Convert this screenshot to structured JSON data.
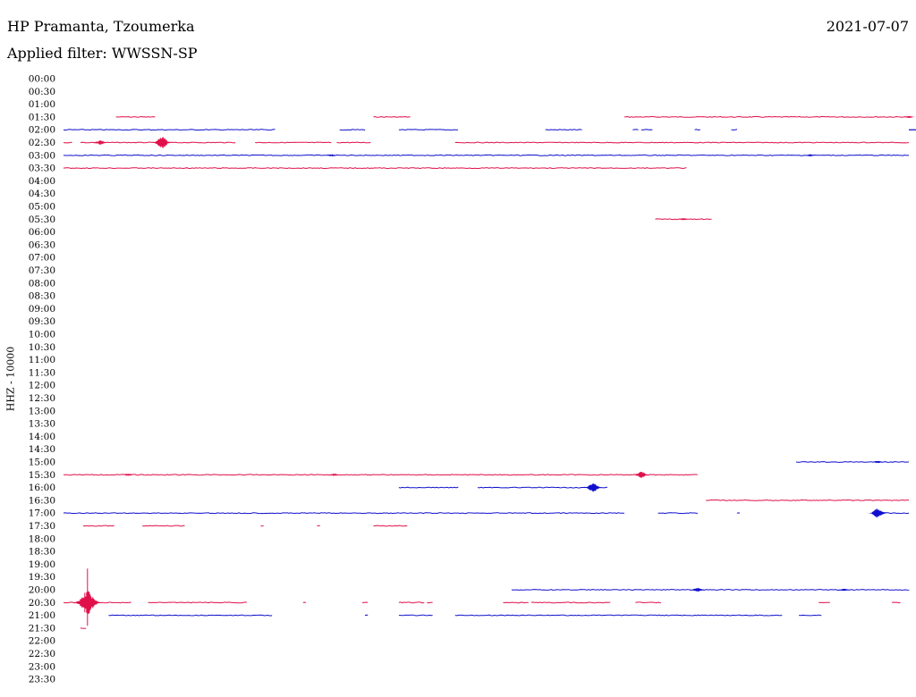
{
  "header": {
    "station": "HP Pramanta, Tzoumerka",
    "date": "2021-07-07",
    "filter": "Applied filter: WWSSN-SP"
  },
  "chart_data": {
    "type": "line",
    "title": "HP Pramanta, Tzoumerka",
    "ylabel": "HHZ - 10000",
    "x_range_minutes": [
      0,
      30
    ],
    "row_labels": [
      "00:00",
      "00:30",
      "01:00",
      "01:30",
      "02:00",
      "02:30",
      "03:00",
      "03:30",
      "04:00",
      "04:30",
      "05:00",
      "05:30",
      "06:00",
      "06:30",
      "07:00",
      "07:30",
      "08:00",
      "08:30",
      "09:00",
      "09:30",
      "10:00",
      "10:30",
      "11:00",
      "11:30",
      "12:00",
      "12:30",
      "13:00",
      "13:30",
      "14:00",
      "14:30",
      "15:00",
      "15:30",
      "16:00",
      "16:30",
      "17:00",
      "17:30",
      "18:00",
      "18:30",
      "19:00",
      "19:30",
      "20:00",
      "20:30",
      "21:00",
      "21:30",
      "22:00",
      "22:30",
      "23:00",
      "23:30"
    ],
    "colors": {
      "odd_rows": "#e0104a",
      "even_rows": "#1010cc"
    },
    "traces": [
      {
        "row": "01:30",
        "segments": [
          [
            1.86,
            3.25
          ],
          [
            11.0,
            12.3
          ],
          [
            19.9,
            30
          ]
        ],
        "events": [
          [
            30.0,
            1
          ]
        ]
      },
      {
        "row": "02:00",
        "segments": [
          [
            0,
            7.5
          ],
          [
            9.8,
            10.7
          ],
          [
            11.9,
            14.0
          ],
          [
            17.1,
            18.4
          ],
          [
            20.2,
            20.4
          ],
          [
            20.5,
            20.9
          ],
          [
            22.4,
            22.6
          ],
          [
            23.7,
            23.9
          ],
          [
            30.7,
            30.9
          ],
          [
            30.6,
            31
          ]
        ],
        "events": []
      },
      {
        "row": "02:30",
        "segments": [
          [
            0,
            0.3
          ],
          [
            0.6,
            6.1
          ],
          [
            6.8,
            9.5
          ],
          [
            9.7,
            10.9
          ],
          [
            13.9,
            30
          ]
        ],
        "events": [
          [
            1.3,
            2
          ],
          [
            3.5,
            5
          ]
        ]
      },
      {
        "row": "03:00",
        "segments": [
          [
            0,
            30
          ]
        ],
        "events": [
          [
            9.5,
            1
          ],
          [
            26.5,
            1
          ]
        ]
      },
      {
        "row": "03:30",
        "segments": [
          [
            0,
            22.1
          ]
        ],
        "events": []
      },
      {
        "row": "05:30",
        "segments": [
          [
            21.0,
            23.0
          ]
        ],
        "events": [
          [
            22.0,
            1
          ]
        ]
      },
      {
        "row": "15:00",
        "segments": [
          [
            26.0,
            30
          ]
        ],
        "events": [
          [
            28.9,
            1
          ]
        ]
      },
      {
        "row": "15:30",
        "segments": [
          [
            0,
            22.5
          ]
        ],
        "events": [
          [
            2.3,
            1
          ],
          [
            9.6,
            1
          ],
          [
            20.5,
            3
          ]
        ]
      },
      {
        "row": "16:00",
        "segments": [
          [
            11.9,
            14.0
          ],
          [
            14.7,
            19.3
          ]
        ],
        "events": [
          [
            18.8,
            4
          ]
        ]
      },
      {
        "row": "16:30",
        "segments": [
          [
            22.8,
            30
          ]
        ],
        "events": []
      },
      {
        "row": "17:00",
        "segments": [
          [
            0,
            19.9
          ],
          [
            21.1,
            22.5
          ],
          [
            23.9,
            24.0
          ],
          [
            28.8,
            30
          ]
        ],
        "events": [
          [
            28.9,
            4
          ]
        ]
      },
      {
        "row": "17:30",
        "segments": [
          [
            0.7,
            1.8
          ],
          [
            2.8,
            4.3
          ],
          [
            7.0,
            7.1
          ],
          [
            9.0,
            9.1
          ],
          [
            11.0,
            12.2
          ]
        ],
        "events": []
      },
      {
        "row": "20:00",
        "segments": [
          [
            15.9,
            30
          ]
        ],
        "events": [
          [
            22.5,
            2
          ],
          [
            27.7,
            1
          ]
        ]
      },
      {
        "row": "20:30",
        "segments": [
          [
            0,
            2.4
          ],
          [
            3.0,
            6.5
          ],
          [
            8.5,
            8.6
          ],
          [
            10.6,
            10.8
          ],
          [
            11.9,
            12.8
          ],
          [
            12.9,
            13.1
          ],
          [
            15.6,
            16.5
          ],
          [
            16.6,
            19.4
          ],
          [
            20.3,
            21.2
          ],
          [
            26.8,
            27.2
          ],
          [
            29.4,
            29.7
          ]
        ],
        "events": [
          [
            0.85,
            10
          ]
        ]
      },
      {
        "row": "21:00",
        "segments": [
          [
            1.6,
            7.4
          ],
          [
            10.7,
            10.8
          ],
          [
            11.9,
            13.1
          ],
          [
            13.9,
            25.5
          ],
          [
            26.1,
            26.9
          ]
        ],
        "events": []
      },
      {
        "row": "21:30",
        "segments": [
          [
            0.6,
            0.8
          ]
        ],
        "events": []
      }
    ]
  }
}
